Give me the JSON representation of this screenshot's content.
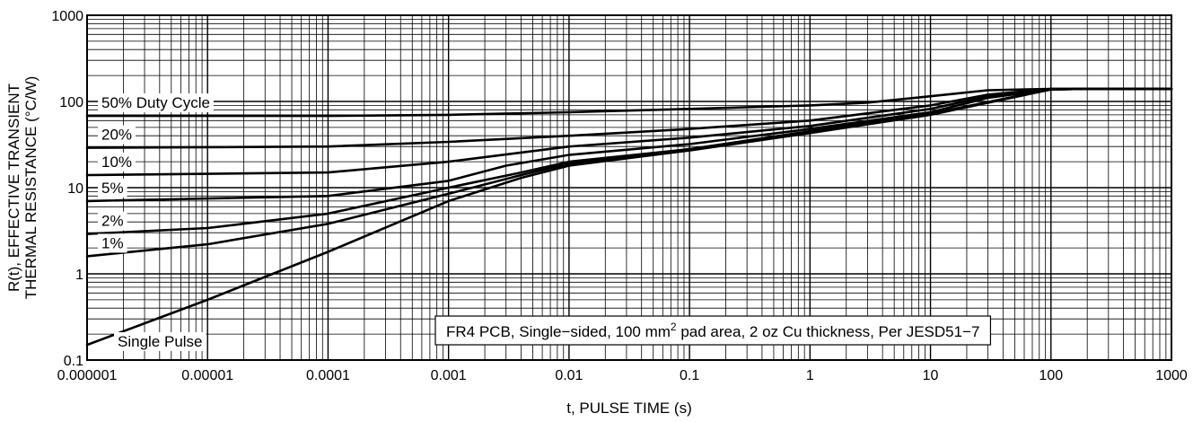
{
  "chart_data": {
    "type": "line",
    "x_scale": "log",
    "y_scale": "log",
    "xlim": [
      1e-06,
      1000
    ],
    "ylim": [
      0.1,
      1000
    ],
    "grid": true,
    "xlabel": "t, PULSE TIME (s)",
    "ylabel_lines": [
      "R(t), EFFECTIVE TRANSIENT",
      "THERMAL RESISTANCE (°C/W)"
    ],
    "x_ticks": [
      "0.000001",
      "0.00001",
      "0.0001",
      "0.001",
      "0.01",
      "0.1",
      "1",
      "10",
      "100",
      "1000"
    ],
    "y_ticks": [
      "0.1",
      "1",
      "10",
      "100",
      "1000"
    ],
    "annotation": {
      "prefix": "FR4 PCB, Single−sided, 100 mm",
      "superscript": "2",
      "suffix": " pad area, 2 oz Cu thickness, Per JESD51−7"
    },
    "line_color": "#000000",
    "series": [
      {
        "name": "50% Duty Cycle",
        "x": [
          1e-06,
          0.0001,
          0.001,
          0.01,
          0.1,
          1,
          3,
          10,
          30,
          100,
          200,
          1000
        ],
        "values": [
          68,
          68,
          70,
          75,
          82,
          90,
          97,
          115,
          135,
          140,
          140,
          140
        ]
      },
      {
        "name": "20%",
        "x": [
          1e-06,
          0.0001,
          0.001,
          0.01,
          0.1,
          1,
          10,
          30,
          100,
          200,
          1000
        ],
        "values": [
          29,
          30,
          34,
          40,
          48,
          60,
          90,
          120,
          140,
          140,
          140
        ]
      },
      {
        "name": "10%",
        "x": [
          1e-06,
          0.0001,
          0.001,
          0.01,
          0.1,
          1,
          10,
          30,
          100,
          200,
          1000
        ],
        "values": [
          14,
          15,
          20,
          30,
          38,
          52,
          82,
          115,
          140,
          140,
          140
        ]
      },
      {
        "name": "5%",
        "x": [
          1e-06,
          0.0001,
          0.001,
          0.003,
          0.01,
          0.1,
          1,
          10,
          30,
          100,
          200,
          1000
        ],
        "values": [
          7,
          8,
          12,
          18,
          24,
          32,
          48,
          75,
          110,
          138,
          140,
          140
        ]
      },
      {
        "name": "2%",
        "x": [
          1e-06,
          1e-05,
          0.0001,
          0.001,
          0.004,
          0.01,
          0.1,
          1,
          10,
          100,
          200,
          1000
        ],
        "values": [
          2.9,
          3.4,
          5,
          10,
          15,
          20,
          28,
          45,
          72,
          138,
          140,
          140
        ]
      },
      {
        "name": "1%",
        "x": [
          1e-06,
          1e-05,
          0.0001,
          0.001,
          0.004,
          0.01,
          0.1,
          1,
          10,
          100,
          200,
          1000
        ],
        "values": [
          1.6,
          2.2,
          3.8,
          8.5,
          14,
          19,
          28,
          45,
          72,
          138,
          140,
          140
        ]
      },
      {
        "name": "Single Pulse",
        "x": [
          1e-06,
          1e-05,
          0.0001,
          0.001,
          0.004,
          0.01,
          0.1,
          1,
          10,
          100,
          200,
          1000
        ],
        "values": [
          0.15,
          0.5,
          1.8,
          7,
          13,
          18,
          27,
          43,
          70,
          138,
          140,
          140
        ]
      }
    ]
  }
}
